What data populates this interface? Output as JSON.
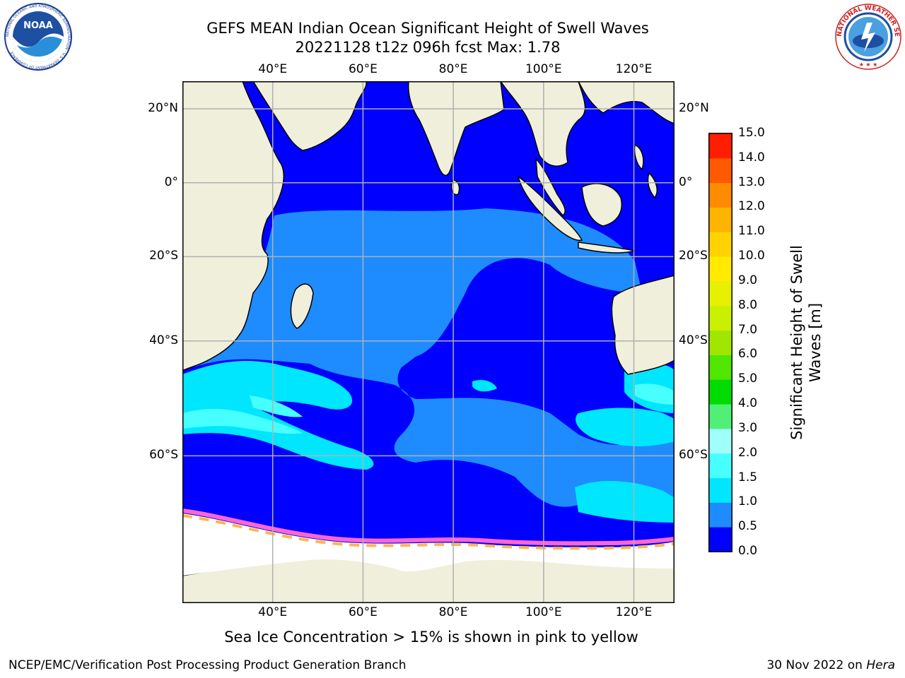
{
  "header": {
    "title_line1": "GEFS MEAN Indian Ocean Significant Height of Swell Waves",
    "title_line2": "20221128 t12z 096h fcst   Max: 1.78"
  },
  "logos": {
    "left": {
      "name": "noaa-logo",
      "text": "NOAA",
      "ring_text": "NATIONAL OCEANIC AND ATMOSPHERIC ADMINISTRATION · U.S. DEPARTMENT OF COMMERCE"
    },
    "right": {
      "name": "nws-logo",
      "ring_text": "NATIONAL WEATHER SERVICE"
    }
  },
  "map": {
    "longitude_labels": [
      "40°E",
      "60°E",
      "80°E",
      "100°E",
      "120°E"
    ],
    "latitude_labels": [
      "20°N",
      "0°",
      "20°S",
      "40°S",
      "60°S"
    ],
    "lon_range": [
      20,
      129
    ],
    "lat_range": [
      -75,
      27
    ]
  },
  "colorbar": {
    "title": "Significant Height of Swell Waves [m]",
    "ticks": [
      "0.0",
      "0.5",
      "1.0",
      "1.5",
      "2.0",
      "3.0",
      "4.0",
      "5.0",
      "6.0",
      "7.0",
      "8.0",
      "9.0",
      "10.0",
      "11.0",
      "12.0",
      "13.0",
      "14.0",
      "15.0"
    ],
    "colors": [
      "#0000ff",
      "#1e8cff",
      "#00e6ff",
      "#47ffff",
      "#a0fffa",
      "#50f078",
      "#00dc00",
      "#50e600",
      "#a0e600",
      "#c8f000",
      "#e6f000",
      "#ffea00",
      "#ffd200",
      "#ffb400",
      "#ff8c00",
      "#ff5a00",
      "#ff1e00"
    ]
  },
  "caption": "Sea Ice Concentration > 15% is shown in pink to yellow",
  "footer": {
    "left": "NCEP/EMC/Verification Post Processing Product Generation Branch",
    "right_prefix": "30 Nov 2022 on ",
    "right_italic": "Hera"
  }
}
